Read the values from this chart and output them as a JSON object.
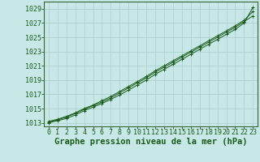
{
  "title": "Graphe pression niveau de la mer (hPa)",
  "bg_color": "#c8e8e8",
  "grid_color": "#aacccc",
  "line_color": "#1a5c1a",
  "xlim": [
    -0.5,
    23.5
  ],
  "ylim": [
    1012.5,
    1030.0
  ],
  "xticks": [
    0,
    1,
    2,
    3,
    4,
    5,
    6,
    7,
    8,
    9,
    10,
    11,
    12,
    13,
    14,
    15,
    16,
    17,
    18,
    19,
    20,
    21,
    22,
    23
  ],
  "yticks": [
    1013,
    1015,
    1017,
    1019,
    1021,
    1023,
    1025,
    1027,
    1029
  ],
  "hours": [
    0,
    1,
    2,
    3,
    4,
    5,
    6,
    7,
    8,
    9,
    10,
    11,
    12,
    13,
    14,
    15,
    16,
    17,
    18,
    19,
    20,
    21,
    22,
    23
  ],
  "line1": [
    1013.0,
    1013.3,
    1013.6,
    1014.1,
    1014.7,
    1015.2,
    1015.7,
    1016.3,
    1016.9,
    1017.6,
    1018.3,
    1019.0,
    1019.8,
    1020.5,
    1021.2,
    1021.9,
    1022.6,
    1023.3,
    1024.0,
    1024.7,
    1025.4,
    1026.1,
    1027.0,
    1029.2
  ],
  "line2": [
    1013.1,
    1013.4,
    1013.8,
    1014.3,
    1014.9,
    1015.4,
    1015.9,
    1016.5,
    1017.2,
    1017.9,
    1018.6,
    1019.3,
    1020.1,
    1020.8,
    1021.5,
    1022.2,
    1022.9,
    1023.6,
    1024.3,
    1025.0,
    1025.7,
    1026.4,
    1027.2,
    1028.0
  ],
  "line3": [
    1013.2,
    1013.5,
    1013.9,
    1014.4,
    1015.0,
    1015.5,
    1016.1,
    1016.7,
    1017.4,
    1018.1,
    1018.8,
    1019.5,
    1020.3,
    1021.0,
    1021.7,
    1022.4,
    1023.1,
    1023.8,
    1024.5,
    1025.2,
    1025.9,
    1026.6,
    1027.4,
    1028.6
  ],
  "title_fontsize": 7.5,
  "tick_fontsize": 6.0
}
